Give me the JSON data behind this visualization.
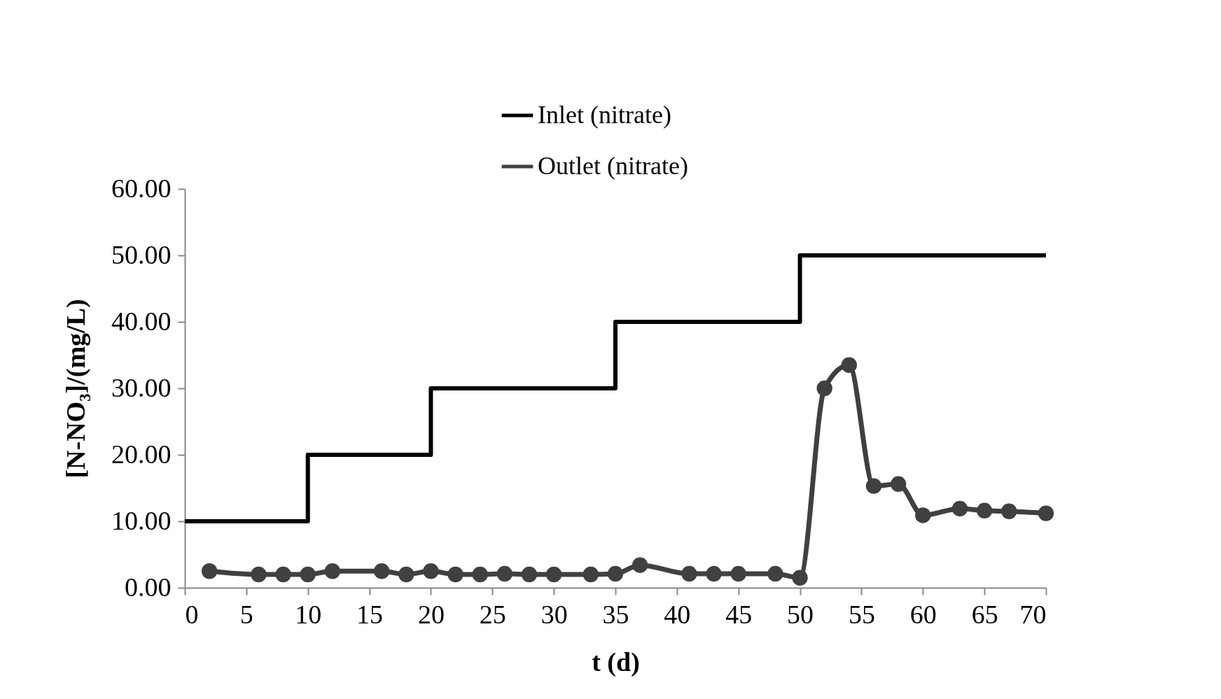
{
  "chart_data": {
    "type": "line",
    "xlabel": "t (d)",
    "ylabel": "[N-NO₃]/(mg/L)",
    "xlim": [
      0,
      70
    ],
    "xticks": [
      0,
      5,
      10,
      15,
      20,
      25,
      30,
      35,
      40,
      45,
      50,
      55,
      60,
      65,
      70
    ],
    "ylim": [
      0,
      60
    ],
    "yticks": [
      {
        "value": 0,
        "label": "0.00"
      },
      {
        "value": 10,
        "label": "10.00"
      },
      {
        "value": 20,
        "label": "20.00"
      },
      {
        "value": 30,
        "label": "30.00"
      },
      {
        "value": 40,
        "label": "40.00"
      },
      {
        "value": 50,
        "label": "50.00"
      },
      {
        "value": 60,
        "label": "60.00"
      }
    ],
    "grid": false,
    "legend": "top",
    "series": [
      {
        "name": "Inlet (nitrate)",
        "type": "step",
        "color": "#000000",
        "marker": "none",
        "x": [
          0,
          10,
          20,
          35,
          50,
          70
        ],
        "values": [
          10,
          20,
          30,
          40,
          50,
          50
        ]
      },
      {
        "name": "Outlet (nitrate)",
        "color": "#404040",
        "marker": "circle",
        "x": [
          2,
          6,
          8,
          10,
          12,
          16,
          18,
          20,
          22,
          24,
          26,
          28,
          30,
          33,
          35,
          37,
          41,
          43,
          45,
          48,
          50,
          52,
          54,
          56,
          58,
          60,
          63,
          65,
          67,
          70
        ],
        "values": [
          2.5,
          2.0,
          2.0,
          2.0,
          2.5,
          2.5,
          2.0,
          2.5,
          2.0,
          2.0,
          2.1,
          2.0,
          2.0,
          2.0,
          2.1,
          3.4,
          2.1,
          2.1,
          2.1,
          2.1,
          1.5,
          30,
          33.5,
          15.3,
          15.6,
          10.9,
          11.9,
          11.6,
          11.5,
          11.2
        ]
      }
    ]
  }
}
